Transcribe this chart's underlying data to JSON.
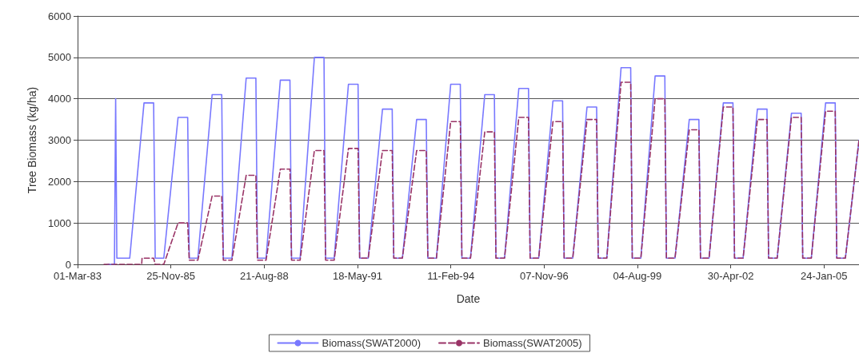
{
  "chart_data": {
    "type": "line",
    "xlabel": "Date",
    "ylabel": "Tree Biomass (kg/ha)",
    "xlim": [
      "1983-03-01",
      "2006-02-03"
    ],
    "xticks": [
      {
        "value": "1983-03-01",
        "label": "01-Mar-83"
      },
      {
        "value": "1985-11-25",
        "label": "25-Nov-85"
      },
      {
        "value": "1988-08-21",
        "label": "21-Aug-88"
      },
      {
        "value": "1991-05-18",
        "label": "18-May-91"
      },
      {
        "value": "1994-02-11",
        "label": "11-Feb-94"
      },
      {
        "value": "1996-11-07",
        "label": "07-Nov-96"
      },
      {
        "value": "1999-08-04",
        "label": "04-Aug-99"
      },
      {
        "value": "2002-04-30",
        "label": "30-Apr-02"
      },
      {
        "value": "2005-01-24",
        "label": "24-Jan-05"
      }
    ],
    "ylim": [
      0,
      6000
    ],
    "yticks": [
      0,
      1000,
      2000,
      3000,
      4000,
      5000,
      6000
    ],
    "grid": "y",
    "legend": "bottom",
    "marker": "none",
    "series": [
      {
        "name": "Biomass(SWAT2000)",
        "color": "#7878ff",
        "line_style": "solid",
        "x": [
          "1984-01-20",
          "1984-03-30",
          "1984-04-12",
          "1984-04-25",
          "1984-09-10",
          "1985-02-10",
          "1985-05-24",
          "1985-06-10",
          "1985-09-10",
          "1986-02-10",
          "1986-05-24",
          "1986-06-10",
          "1986-09-10",
          "1987-02-10",
          "1987-05-24",
          "1987-06-10",
          "1987-09-10",
          "1988-02-10",
          "1988-05-24",
          "1988-06-10",
          "1988-09-10",
          "1989-02-10",
          "1989-05-24",
          "1989-06-10",
          "1989-09-10",
          "1990-02-10",
          "1990-05-24",
          "1990-06-10",
          "1990-09-10",
          "1991-02-10",
          "1991-05-24",
          "1991-06-10",
          "1991-09-10",
          "1992-02-10",
          "1992-05-24",
          "1992-06-10",
          "1992-09-10",
          "1993-02-10",
          "1993-05-24",
          "1993-06-10",
          "1993-09-10",
          "1994-02-10",
          "1994-05-24",
          "1994-06-10",
          "1994-09-10",
          "1995-02-10",
          "1995-05-24",
          "1995-06-10",
          "1995-09-10",
          "1996-02-10",
          "1996-05-24",
          "1996-06-10",
          "1996-09-10",
          "1997-02-10",
          "1997-05-24",
          "1997-06-10",
          "1997-09-10",
          "1998-02-10",
          "1998-05-24",
          "1998-06-10",
          "1998-09-10",
          "1999-02-10",
          "1999-05-24",
          "1999-06-10",
          "1999-09-10",
          "2000-02-10",
          "2000-05-24",
          "2000-06-10",
          "2000-09-10",
          "2001-02-10",
          "2001-05-24",
          "2001-06-10",
          "2001-09-10",
          "2002-02-10",
          "2002-05-24",
          "2002-06-10",
          "2002-09-10",
          "2003-02-10",
          "2003-05-24",
          "2003-06-10",
          "2003-09-10",
          "2004-02-10",
          "2004-05-24",
          "2004-06-10",
          "2004-09-10",
          "2005-02-10",
          "2005-05-24",
          "2005-06-10",
          "2005-09-10",
          "2006-02-03"
        ],
        "values": [
          0,
          0,
          4000,
          150,
          150,
          3900,
          3900,
          150,
          150,
          3550,
          3550,
          150,
          150,
          4100,
          4100,
          150,
          150,
          4500,
          4500,
          150,
          150,
          4450,
          4450,
          150,
          150,
          5000,
          5000,
          150,
          150,
          4350,
          4350,
          150,
          150,
          3750,
          3750,
          150,
          150,
          3500,
          3500,
          150,
          150,
          4350,
          4350,
          150,
          150,
          4100,
          4100,
          150,
          150,
          4250,
          4250,
          150,
          150,
          3950,
          3950,
          150,
          150,
          3800,
          3800,
          150,
          150,
          4750,
          4750,
          150,
          150,
          4550,
          4550,
          150,
          150,
          3500,
          3500,
          150,
          150,
          3900,
          3900,
          150,
          150,
          3750,
          3750,
          150,
          150,
          3650,
          3650,
          150,
          150,
          3900,
          3900,
          150,
          150,
          3000
        ]
      },
      {
        "name": "Biomass(SWAT2005)",
        "color": "#993366",
        "line_style": "dashed",
        "x": [
          "1983-12-10",
          "1985-01-16",
          "1985-01-20",
          "1985-05-24",
          "1985-06-10",
          "1985-09-10",
          "1986-02-10",
          "1986-05-24",
          "1986-06-10",
          "1986-09-10",
          "1987-02-10",
          "1987-05-24",
          "1987-06-10",
          "1987-09-10",
          "1988-02-10",
          "1988-05-24",
          "1988-06-10",
          "1988-09-10",
          "1989-02-10",
          "1989-05-24",
          "1989-06-10",
          "1989-09-10",
          "1990-02-10",
          "1990-05-24",
          "1990-06-10",
          "1990-09-10",
          "1991-02-10",
          "1991-05-24",
          "1991-06-10",
          "1991-09-10",
          "1992-02-10",
          "1992-05-24",
          "1992-06-10",
          "1992-09-10",
          "1993-02-10",
          "1993-05-24",
          "1993-06-10",
          "1993-09-10",
          "1994-02-10",
          "1994-05-24",
          "1994-06-10",
          "1994-09-10",
          "1995-02-10",
          "1995-05-24",
          "1995-06-10",
          "1995-09-10",
          "1996-02-10",
          "1996-05-24",
          "1996-06-10",
          "1996-09-10",
          "1997-02-10",
          "1997-05-24",
          "1997-06-10",
          "1997-09-10",
          "1998-02-10",
          "1998-05-24",
          "1998-06-10",
          "1998-09-10",
          "1999-02-10",
          "1999-05-24",
          "1999-06-10",
          "1999-09-10",
          "2000-02-10",
          "2000-05-24",
          "2000-06-10",
          "2000-09-10",
          "2001-02-10",
          "2001-05-24",
          "2001-06-10",
          "2001-09-10",
          "2002-02-10",
          "2002-05-24",
          "2002-06-10",
          "2002-09-10",
          "2003-02-10",
          "2003-05-24",
          "2003-06-10",
          "2003-09-10",
          "2004-02-10",
          "2004-05-24",
          "2004-06-10",
          "2004-09-10",
          "2005-02-10",
          "2005-05-24",
          "2005-06-10",
          "2005-09-10",
          "2006-02-03"
        ],
        "values": [
          0,
          0,
          150,
          150,
          0,
          0,
          1000,
          1000,
          100,
          100,
          1650,
          1650,
          100,
          100,
          2150,
          2150,
          100,
          100,
          2300,
          2300,
          100,
          100,
          2750,
          2750,
          100,
          100,
          2800,
          2800,
          150,
          150,
          2750,
          2750,
          150,
          150,
          2750,
          2750,
          150,
          150,
          3450,
          3450,
          150,
          150,
          3200,
          3200,
          150,
          150,
          3550,
          3550,
          150,
          150,
          3450,
          3450,
          150,
          150,
          3500,
          3500,
          150,
          150,
          4400,
          4400,
          150,
          150,
          4000,
          4000,
          150,
          150,
          3250,
          3250,
          150,
          150,
          3800,
          3800,
          150,
          150,
          3500,
          3500,
          150,
          150,
          3550,
          3550,
          150,
          150,
          3700,
          3700,
          150,
          150,
          3000
        ]
      }
    ]
  }
}
